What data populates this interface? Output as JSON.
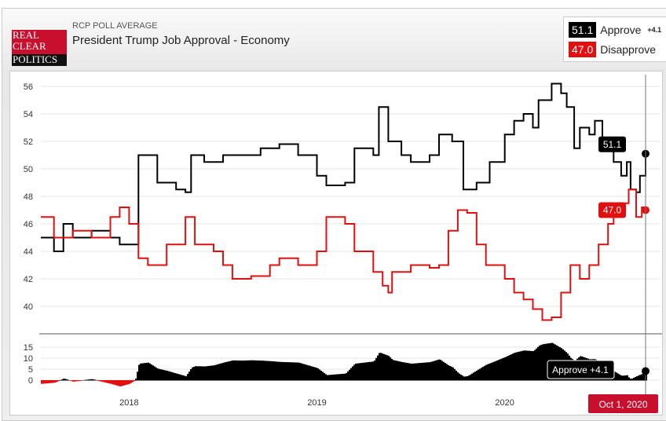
{
  "header": {
    "logo_lines": [
      "REAL",
      "CLEAR",
      "POLITICS"
    ],
    "subtitle": "RCP POLL AVERAGE",
    "title": "President Trump Job Approval - Economy"
  },
  "legend": {
    "approve": {
      "value": "51.1",
      "label": "Approve",
      "change": "+4.1",
      "color": "#000000"
    },
    "disapprove": {
      "value": "47.0",
      "label": "Disapprove",
      "color": "#e01010"
    }
  },
  "tooltip": {
    "label": "Approve +4.1",
    "date": "Oct 1, 2020"
  },
  "chart_data": {
    "type": "line",
    "title": "President Trump Job Approval - Economy",
    "yticks": [
      40,
      42,
      44,
      46,
      48,
      50,
      52,
      54,
      56
    ],
    "ylim": [
      38.5,
      57
    ],
    "xlim": [
      2017.53,
      2020.75
    ],
    "xticks": [
      {
        "v": 2018,
        "label": "2018"
      },
      {
        "v": 2019,
        "label": "2019"
      },
      {
        "v": 2020,
        "label": "2020"
      }
    ],
    "spread_yticks": [
      0,
      5,
      10,
      15
    ],
    "series": [
      {
        "name": "Approve",
        "color": "#000000",
        "end_label": "51.1",
        "x": [
          2017.53,
          2017.6,
          2017.65,
          2017.7,
          2017.8,
          2017.9,
          2017.95,
          2018.03,
          2018.05,
          2018.1,
          2018.15,
          2018.25,
          2018.3,
          2018.33,
          2018.4,
          2018.5,
          2018.6,
          2018.7,
          2018.8,
          2018.9,
          2019.0,
          2019.05,
          2019.15,
          2019.2,
          2019.3,
          2019.33,
          2019.38,
          2019.45,
          2019.5,
          2019.6,
          2019.65,
          2019.72,
          2019.78,
          2019.85,
          2019.92,
          2020.0,
          2020.05,
          2020.1,
          2020.15,
          2020.18,
          2020.25,
          2020.3,
          2020.33,
          2020.37,
          2020.4,
          2020.45,
          2020.48,
          2020.52,
          2020.58,
          2020.62,
          2020.65,
          2020.67,
          2020.7,
          2020.72,
          2020.75
        ],
        "y": [
          45,
          44,
          46,
          45,
          45.5,
          45,
          44.5,
          44.5,
          51,
          51,
          49,
          48.5,
          48.3,
          51,
          50.5,
          51,
          51,
          51.5,
          51.8,
          51,
          49.5,
          48.8,
          49,
          51.5,
          51,
          54.5,
          52,
          51,
          50.5,
          51,
          52.5,
          52,
          48.5,
          49,
          50.5,
          52.5,
          53.5,
          54,
          53,
          55,
          56.2,
          55.5,
          54.5,
          51.5,
          53,
          52.5,
          53.5,
          51.5,
          50.5,
          49.5,
          50.5,
          48.5,
          48.3,
          49.5,
          51.1
        ]
      },
      {
        "name": "Disapprove",
        "color": "#e01010",
        "end_label": "47.0",
        "x": [
          2017.53,
          2017.6,
          2017.7,
          2017.8,
          2017.9,
          2017.95,
          2018.0,
          2018.05,
          2018.1,
          2018.2,
          2018.3,
          2018.35,
          2018.45,
          2018.5,
          2018.55,
          2018.65,
          2018.75,
          2018.8,
          2018.9,
          2019.0,
          2019.05,
          2019.15,
          2019.2,
          2019.3,
          2019.35,
          2019.38,
          2019.4,
          2019.5,
          2019.6,
          2019.65,
          2019.7,
          2019.75,
          2019.8,
          2019.85,
          2019.9,
          2020.0,
          2020.05,
          2020.1,
          2020.15,
          2020.2,
          2020.25,
          2020.3,
          2020.35,
          2020.4,
          2020.45,
          2020.5,
          2020.55,
          2020.58,
          2020.62,
          2020.66,
          2020.7,
          2020.73,
          2020.75
        ],
        "y": [
          46.5,
          45,
          45.5,
          45,
          46.5,
          47.2,
          46,
          43.5,
          43,
          44.5,
          46.5,
          44.5,
          44,
          43,
          42,
          42.2,
          43,
          43.5,
          43,
          44,
          46.5,
          46,
          44,
          42.5,
          41.5,
          41,
          42.5,
          43,
          42.8,
          43,
          45.5,
          47,
          46.8,
          44.5,
          43,
          42,
          41,
          40.5,
          39.8,
          39,
          39.2,
          41,
          43,
          42,
          43,
          44.5,
          46,
          46.5,
          47.5,
          48.5,
          46.5,
          47.2,
          47.0
        ]
      }
    ]
  }
}
